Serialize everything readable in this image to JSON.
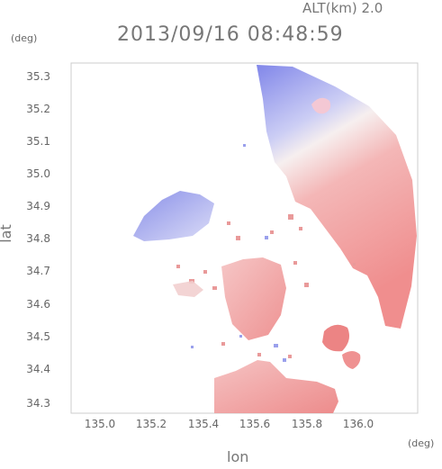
{
  "header": {
    "altitude_label": "ALT(km) 2.0",
    "timestamp": "2013/09/16 08:48:59"
  },
  "axes": {
    "y_unit": "(deg)",
    "x_unit": "(deg)",
    "ylabel": "lat",
    "xlabel": "lon",
    "y_ticks": [
      "35.3",
      "35.2",
      "35.1",
      "35.0",
      "34.9",
      "34.8",
      "34.7",
      "34.6",
      "34.5",
      "34.4",
      "34.3"
    ],
    "x_ticks": [
      "135.0",
      "135.2",
      "135.4",
      "135.6",
      "135.8",
      "136.0"
    ]
  },
  "map": {
    "colors": {
      "approaching": "#7f86e6",
      "receding": "#ef8f8f",
      "frame": "#cccccc"
    },
    "lon_range": [
      134.87,
      136.17
    ],
    "lat_range": [
      34.275,
      35.36
    ]
  }
}
